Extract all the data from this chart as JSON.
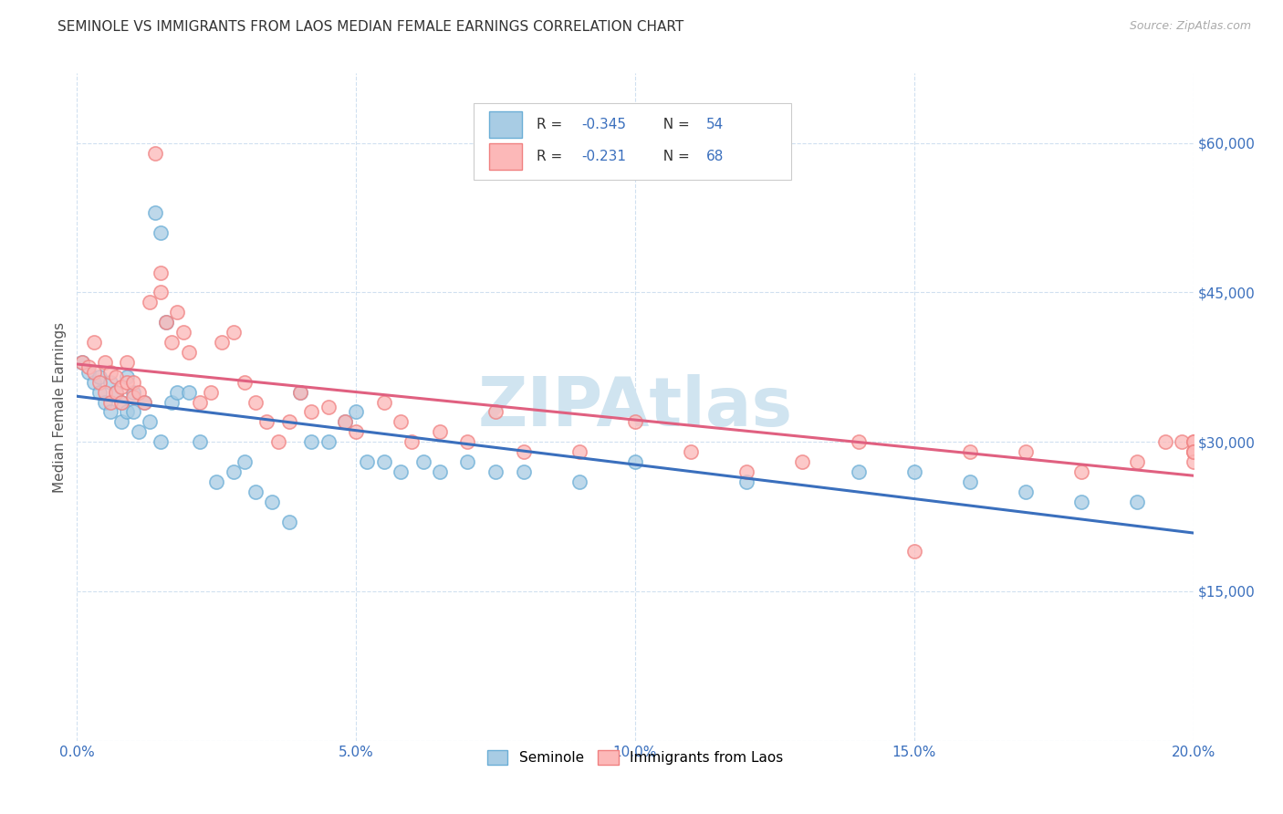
{
  "title": "SEMINOLE VS IMMIGRANTS FROM LAOS MEDIAN FEMALE EARNINGS CORRELATION CHART",
  "source": "Source: ZipAtlas.com",
  "ylabel": "Median Female Earnings",
  "xlim": [
    0.0,
    0.2
  ],
  "ylim": [
    0,
    67000
  ],
  "xtick_labels": [
    "0.0%",
    "5.0%",
    "10.0%",
    "15.0%",
    "20.0%"
  ],
  "xtick_vals": [
    0.0,
    0.05,
    0.1,
    0.15,
    0.2
  ],
  "ytick_vals": [
    0,
    15000,
    30000,
    45000,
    60000
  ],
  "ytick_labels": [
    "",
    "$15,000",
    "$30,000",
    "$45,000",
    "$60,000"
  ],
  "legend_label1": "Seminole",
  "legend_label2": "Immigrants from Laos",
  "R1": "-0.345",
  "N1": "54",
  "R2": "-0.231",
  "N2": "68",
  "color1_fill": "#a8cce4",
  "color1_edge": "#6baed6",
  "color2_fill": "#fcb8b8",
  "color2_edge": "#f08080",
  "line1_color": "#3a6fbd",
  "line2_color": "#e06080",
  "legend_text_color": "#3a6fbd",
  "watermark": "ZIPAtlas",
  "watermark_color": "#d0e4f0",
  "title_fontsize": 11,
  "axis_color": "#3a6fbd",
  "grid_color": "#d0e0f0",
  "background_color": "#ffffff",
  "seminole_x": [
    0.001,
    0.002,
    0.003,
    0.004,
    0.004,
    0.005,
    0.006,
    0.006,
    0.007,
    0.008,
    0.008,
    0.009,
    0.009,
    0.01,
    0.01,
    0.011,
    0.012,
    0.013,
    0.014,
    0.015,
    0.015,
    0.016,
    0.017,
    0.018,
    0.02,
    0.022,
    0.025,
    0.028,
    0.03,
    0.032,
    0.035,
    0.038,
    0.04,
    0.042,
    0.045,
    0.048,
    0.05,
    0.052,
    0.055,
    0.058,
    0.062,
    0.065,
    0.07,
    0.075,
    0.08,
    0.09,
    0.1,
    0.12,
    0.14,
    0.15,
    0.16,
    0.17,
    0.18,
    0.19
  ],
  "seminole_y": [
    38000,
    37000,
    36000,
    36500,
    35000,
    34000,
    33000,
    36000,
    35000,
    34000,
    32000,
    36500,
    33000,
    35000,
    33000,
    31000,
    34000,
    32000,
    53000,
    51000,
    30000,
    42000,
    34000,
    35000,
    35000,
    30000,
    26000,
    27000,
    28000,
    25000,
    24000,
    22000,
    35000,
    30000,
    30000,
    32000,
    33000,
    28000,
    28000,
    27000,
    28000,
    27000,
    28000,
    27000,
    27000,
    26000,
    28000,
    26000,
    27000,
    27000,
    26000,
    25000,
    24000,
    24000
  ],
  "laos_x": [
    0.001,
    0.002,
    0.003,
    0.003,
    0.004,
    0.005,
    0.005,
    0.006,
    0.006,
    0.007,
    0.007,
    0.008,
    0.008,
    0.009,
    0.009,
    0.01,
    0.01,
    0.011,
    0.012,
    0.013,
    0.014,
    0.015,
    0.015,
    0.016,
    0.017,
    0.018,
    0.019,
    0.02,
    0.022,
    0.024,
    0.026,
    0.028,
    0.03,
    0.032,
    0.034,
    0.036,
    0.038,
    0.04,
    0.042,
    0.045,
    0.048,
    0.05,
    0.055,
    0.058,
    0.06,
    0.065,
    0.07,
    0.075,
    0.08,
    0.09,
    0.1,
    0.11,
    0.12,
    0.13,
    0.14,
    0.15,
    0.16,
    0.17,
    0.18,
    0.19,
    0.195,
    0.198,
    0.2,
    0.2,
    0.2,
    0.2,
    0.2,
    0.2
  ],
  "laos_y": [
    38000,
    37500,
    37000,
    40000,
    36000,
    35000,
    38000,
    34000,
    37000,
    36500,
    35000,
    35500,
    34000,
    38000,
    36000,
    36000,
    34500,
    35000,
    34000,
    44000,
    59000,
    47000,
    45000,
    42000,
    40000,
    43000,
    41000,
    39000,
    34000,
    35000,
    40000,
    41000,
    36000,
    34000,
    32000,
    30000,
    32000,
    35000,
    33000,
    33500,
    32000,
    31000,
    34000,
    32000,
    30000,
    31000,
    30000,
    33000,
    29000,
    29000,
    32000,
    29000,
    27000,
    28000,
    30000,
    19000,
    29000,
    29000,
    27000,
    28000,
    30000,
    30000,
    29000,
    30000,
    30000,
    29000,
    28000,
    29000
  ]
}
